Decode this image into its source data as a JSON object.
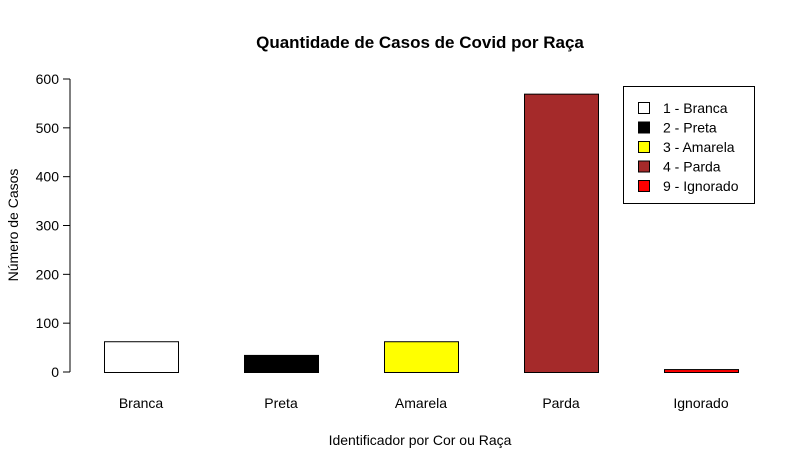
{
  "chart_data": {
    "type": "bar",
    "title": "Quantidade de Casos de Covid por Raça",
    "xlabel": "Identificador por Cor ou Raça",
    "ylabel": "Número de Casos",
    "categories": [
      "Branca",
      "Preta",
      "Amarela",
      "Parda",
      "Ignorado"
    ],
    "values": [
      63,
      35,
      63,
      570,
      6
    ],
    "colors": [
      "#ffffff",
      "#000000",
      "#ffff00",
      "#a52a2a",
      "#ff0000"
    ],
    "ylim": [
      0,
      600
    ],
    "yticks": [
      0,
      100,
      200,
      300,
      400,
      500,
      600
    ],
    "ytick_labels": [
      "0",
      "100",
      "200",
      "300",
      "400",
      "500",
      "600"
    ],
    "grid": false,
    "legend": {
      "position": "top-right",
      "entries": [
        {
          "label": "1 - Branca",
          "color": "#ffffff"
        },
        {
          "label": "2 - Preta",
          "color": "#000000"
        },
        {
          "label": "3 - Amarela",
          "color": "#ffff00"
        },
        {
          "label": "4 - Parda",
          "color": "#a52a2a"
        },
        {
          "label": "9 - Ignorado",
          "color": "#ff0000"
        }
      ]
    }
  }
}
